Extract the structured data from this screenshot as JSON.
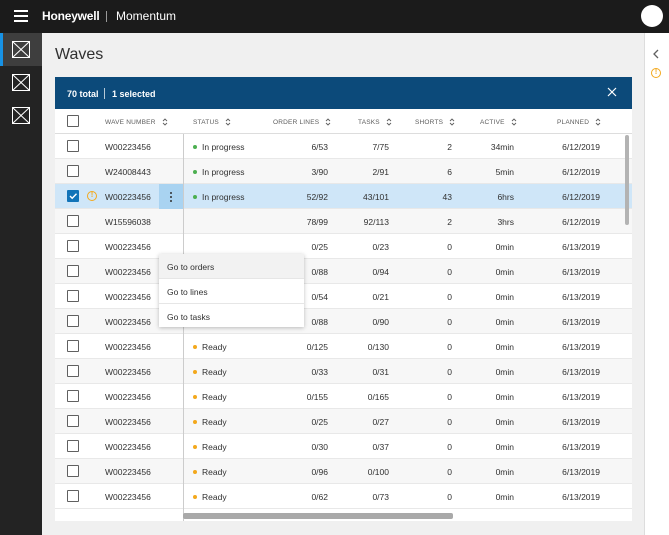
{
  "header": {
    "brand": "Honeywell",
    "product": "Momentum"
  },
  "sidebar": {
    "items": [
      {
        "icon": "placeholder-icon",
        "active": true
      },
      {
        "icon": "placeholder-icon",
        "active": false
      },
      {
        "icon": "placeholder-icon",
        "active": false
      }
    ]
  },
  "page": {
    "title": "Waves"
  },
  "selection": {
    "total": "70 total",
    "selected": "1 selected"
  },
  "columns": [
    "WAVE NUMBER",
    "STATUS",
    "ORDER LINES",
    "TASKS",
    "SHORTS",
    "ACTIVE",
    "PLANNED"
  ],
  "status_colors": {
    "In progress": "#4caf50",
    "Ready": "#f3a81c"
  },
  "rows": [
    {
      "wave": "W00223456",
      "status": "In progress",
      "order_lines": "6/53",
      "tasks": "7/75",
      "shorts": "2",
      "active": "34min",
      "planned": "6/12/2019"
    },
    {
      "wave": "W24008443",
      "status": "In progress",
      "order_lines": "3/90",
      "tasks": "2/91",
      "shorts": "6",
      "active": "5min",
      "planned": "6/12/2019"
    },
    {
      "wave": "W00223456",
      "status": "In progress",
      "order_lines": "52/92",
      "tasks": "43/101",
      "shorts": "43",
      "active": "6hrs",
      "planned": "6/12/2019",
      "checked": true,
      "warning": true
    },
    {
      "wave": "W15596038",
      "status": "",
      "order_lines": "78/99",
      "tasks": "92/113",
      "shorts": "2",
      "active": "3hrs",
      "planned": "6/12/2019"
    },
    {
      "wave": "W00223456",
      "status": "",
      "order_lines": "0/25",
      "tasks": "0/23",
      "shorts": "0",
      "active": "0min",
      "planned": "6/13/2019"
    },
    {
      "wave": "W00223456",
      "status": "",
      "order_lines": "0/88",
      "tasks": "0/94",
      "shorts": "0",
      "active": "0min",
      "planned": "6/13/2019"
    },
    {
      "wave": "W00223456",
      "status": "Ready",
      "order_lines": "0/54",
      "tasks": "0/21",
      "shorts": "0",
      "active": "0min",
      "planned": "6/13/2019"
    },
    {
      "wave": "W00223456",
      "status": "Ready",
      "order_lines": "0/88",
      "tasks": "0/90",
      "shorts": "0",
      "active": "0min",
      "planned": "6/13/2019"
    },
    {
      "wave": "W00223456",
      "status": "Ready",
      "order_lines": "0/125",
      "tasks": "0/130",
      "shorts": "0",
      "active": "0min",
      "planned": "6/13/2019"
    },
    {
      "wave": "W00223456",
      "status": "Ready",
      "order_lines": "0/33",
      "tasks": "0/31",
      "shorts": "0",
      "active": "0min",
      "planned": "6/13/2019"
    },
    {
      "wave": "W00223456",
      "status": "Ready",
      "order_lines": "0/155",
      "tasks": "0/165",
      "shorts": "0",
      "active": "0min",
      "planned": "6/13/2019"
    },
    {
      "wave": "W00223456",
      "status": "Ready",
      "order_lines": "0/25",
      "tasks": "0/27",
      "shorts": "0",
      "active": "0min",
      "planned": "6/13/2019"
    },
    {
      "wave": "W00223456",
      "status": "Ready",
      "order_lines": "0/30",
      "tasks": "0/37",
      "shorts": "0",
      "active": "0min",
      "planned": "6/13/2019"
    },
    {
      "wave": "W00223456",
      "status": "Ready",
      "order_lines": "0/96",
      "tasks": "0/100",
      "shorts": "0",
      "active": "0min",
      "planned": "6/13/2019"
    },
    {
      "wave": "W00223456",
      "status": "Ready",
      "order_lines": "0/62",
      "tasks": "0/73",
      "shorts": "0",
      "active": "0min",
      "planned": "6/13/2019"
    }
  ],
  "context_menu": {
    "items": [
      "Go to orders",
      "Go to lines",
      "Go to tasks"
    ]
  }
}
